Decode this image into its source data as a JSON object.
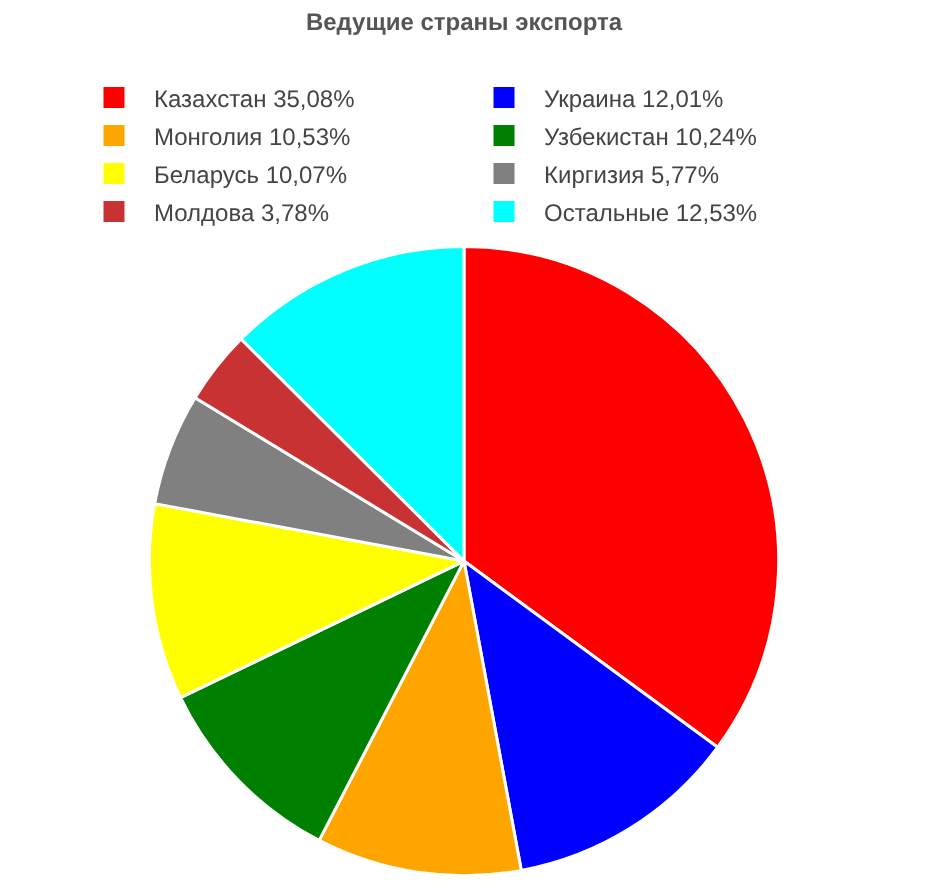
{
  "chart_data": {
    "type": "pie",
    "title": "Ведущие страны экспорта",
    "categories": [
      "Казахстан 35,08%",
      "Украина 12,01%",
      "Монголия 10,53%",
      "Узбекистан 10,24%",
      "Беларусь 10,07%",
      "Киргизия 5,77%",
      "Молдова 3,78%",
      "Остальные 12,53%"
    ],
    "values": [
      35.08,
      12.01,
      10.53,
      10.24,
      10.07,
      5.77,
      3.78,
      12.53
    ],
    "colors": [
      "#ff0000",
      "#0000ff",
      "#ffa500",
      "#008000",
      "#ffff00",
      "#808080",
      "#c83232",
      "#00ffff"
    ],
    "legend": "top"
  }
}
